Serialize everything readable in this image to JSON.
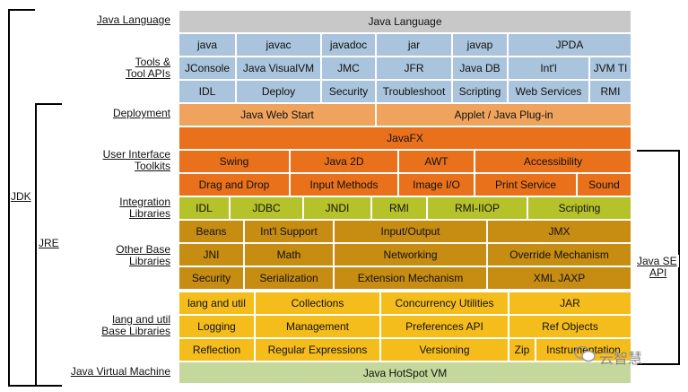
{
  "row_labels": {
    "java_language": "Java Language",
    "tools_line1": "Tools &",
    "tools_line2": "Tool APIs",
    "deployment": "Deployment",
    "ui_line1": "User Interface",
    "ui_line2": "Toolkits",
    "integration_line1": "Integration",
    "integration_line2": "Libraries",
    "other_line1": "Other Base",
    "other_line2": "Libraries",
    "lang_line1": "lang and util",
    "lang_line2": "Base Libraries",
    "jvm": "Java Virtual Machine"
  },
  "brackets": {
    "jdk": "JDK",
    "jre": "JRE",
    "javase_line1": "Java SE",
    "javase_line2": "API"
  },
  "cells": {
    "java_language": "Java Language",
    "tools1": [
      "java",
      "javac",
      "javadoc",
      "jar",
      "javap",
      "JPDA"
    ],
    "tools2": [
      "JConsole",
      "Java VisualVM",
      "JMC",
      "JFR",
      "Java DB",
      "Int'l",
      "JVM TI"
    ],
    "tools3": [
      "IDL",
      "Deploy",
      "Security",
      "Troubleshoot",
      "Scripting",
      "Web Services",
      "RMI"
    ],
    "deploy": [
      "Java Web Start",
      "Applet / Java Plug-in"
    ],
    "javafx": "JavaFX",
    "ui1": [
      "Swing",
      "Java 2D",
      "AWT",
      "Accessibility"
    ],
    "ui2": [
      "Drag and Drop",
      "Input Methods",
      "Image I/O",
      "Print Service",
      "Sound"
    ],
    "integration": [
      "IDL",
      "JDBC",
      "JNDI",
      "RMI",
      "RMI-IIOP",
      "Scripting"
    ],
    "other1": [
      "Beans",
      "Int'l Support",
      "Input/Output",
      "JMX"
    ],
    "other2": [
      "JNI",
      "Math",
      "Networking",
      "Override Mechanism"
    ],
    "other3": [
      "Security",
      "Serialization",
      "Extension Mechanism",
      "XML JAXP"
    ],
    "lang1": [
      "lang and util",
      "Collections",
      "Concurrency Utilities",
      "JAR"
    ],
    "lang2": [
      "Logging",
      "Management",
      "Preferences API",
      "Ref Objects"
    ],
    "lang3": [
      "Reflection",
      "Regular Expressions",
      "Versioning",
      "Zip",
      "Instrumentation"
    ],
    "vm": "Java HotSpot VM"
  },
  "watermark": "云智慧",
  "colors": {
    "language": "#c8c8c8",
    "tools": "#a9c4dc",
    "deployment": "#f0a35d",
    "ui": "#e9711b",
    "integration": "#b5c22a",
    "other": "#c78c12",
    "lang": "#f5bd1c",
    "vm": "#c4d89b"
  }
}
